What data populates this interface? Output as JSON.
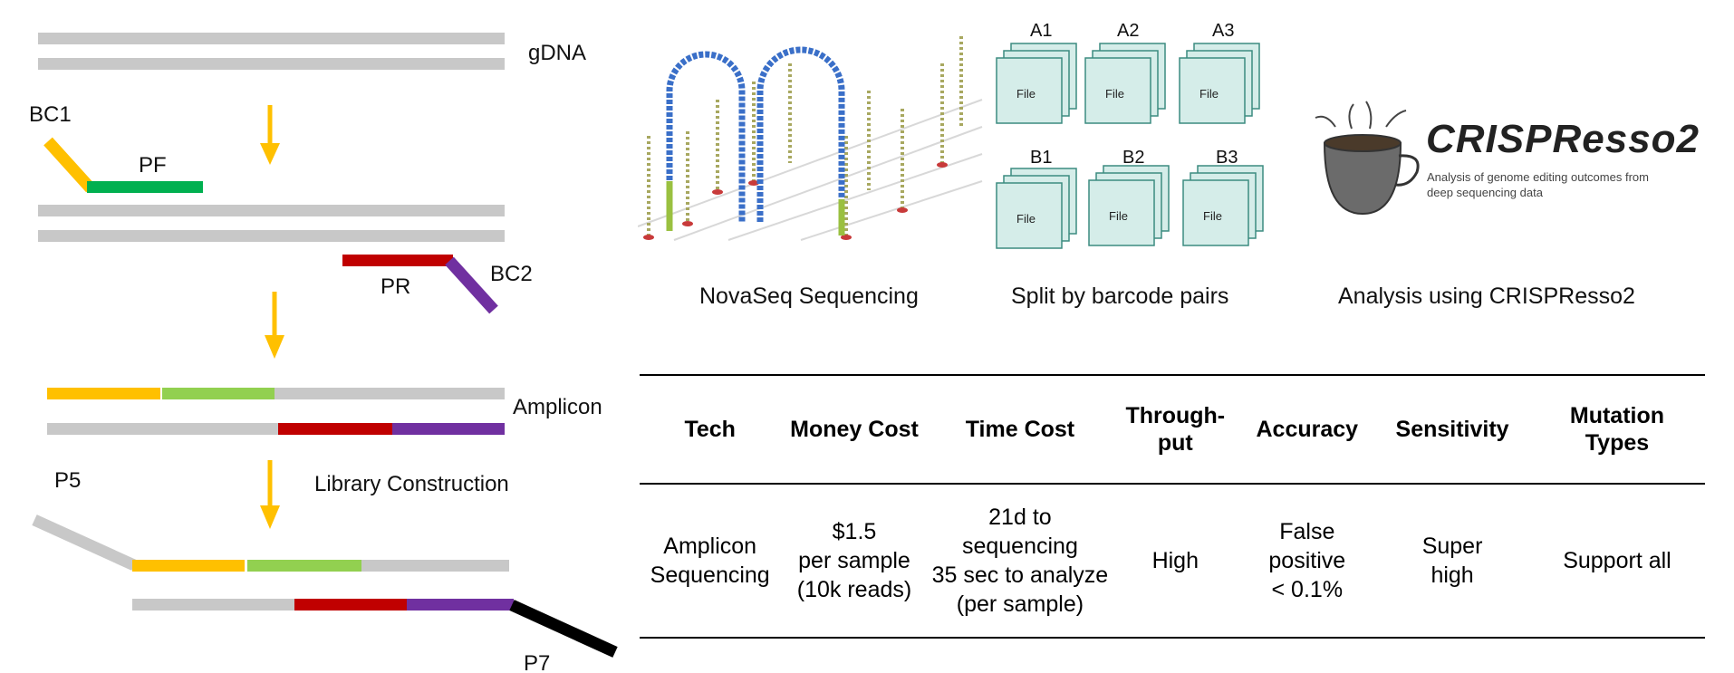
{
  "left_panel": {
    "gdna_label": "gDNA",
    "bc1_label": "BC1",
    "pf_label": "PF",
    "pr_label": "PR",
    "bc2_label": "BC2",
    "amplicon_label": "Amplicon",
    "p5_label": "P5",
    "library_label": "Library Construction",
    "p7_label": "P7"
  },
  "workflow": {
    "novaseq_caption": "NovaSeq Sequencing",
    "split_caption": "Split by barcode pairs",
    "analysis_caption": "Analysis using CRISPResso2",
    "file_groups": [
      {
        "label": "A1",
        "file_text": "File"
      },
      {
        "label": "A2",
        "file_text": "File"
      },
      {
        "label": "A3",
        "file_text": "File"
      },
      {
        "label": "B1",
        "file_text": "File"
      },
      {
        "label": "B2",
        "file_text": "File"
      },
      {
        "label": "B3",
        "file_text": "File"
      }
    ],
    "crispresso": {
      "title": "CRISPResso2",
      "subtitle_line1": "Analysis of genome editing outcomes from",
      "subtitle_line2": "deep sequencing data"
    }
  },
  "table": {
    "headers": [
      "Tech",
      "Money Cost",
      "Time Cost",
      "Through-\nput",
      "Accuracy",
      "Sensitivity",
      "Mutation\nTypes"
    ],
    "rows": [
      [
        "Amplicon\nSequencing",
        "$1.5\nper sample\n(10k reads)",
        "21d to sequencing\n35 sec to analyze\n(per sample)",
        "High",
        "False\npositive\n< 0.1%",
        "Super\nhigh",
        "Support all"
      ]
    ]
  },
  "colors": {
    "gray": "#c8c8c8",
    "yellow": "#ffc000",
    "green": "#00b050",
    "light_green": "#92d050",
    "red": "#c00000",
    "purple": "#7030a0",
    "arrow": "#ffc000",
    "file_fill": "#d5ede9",
    "file_stroke": "#3c8c80"
  }
}
